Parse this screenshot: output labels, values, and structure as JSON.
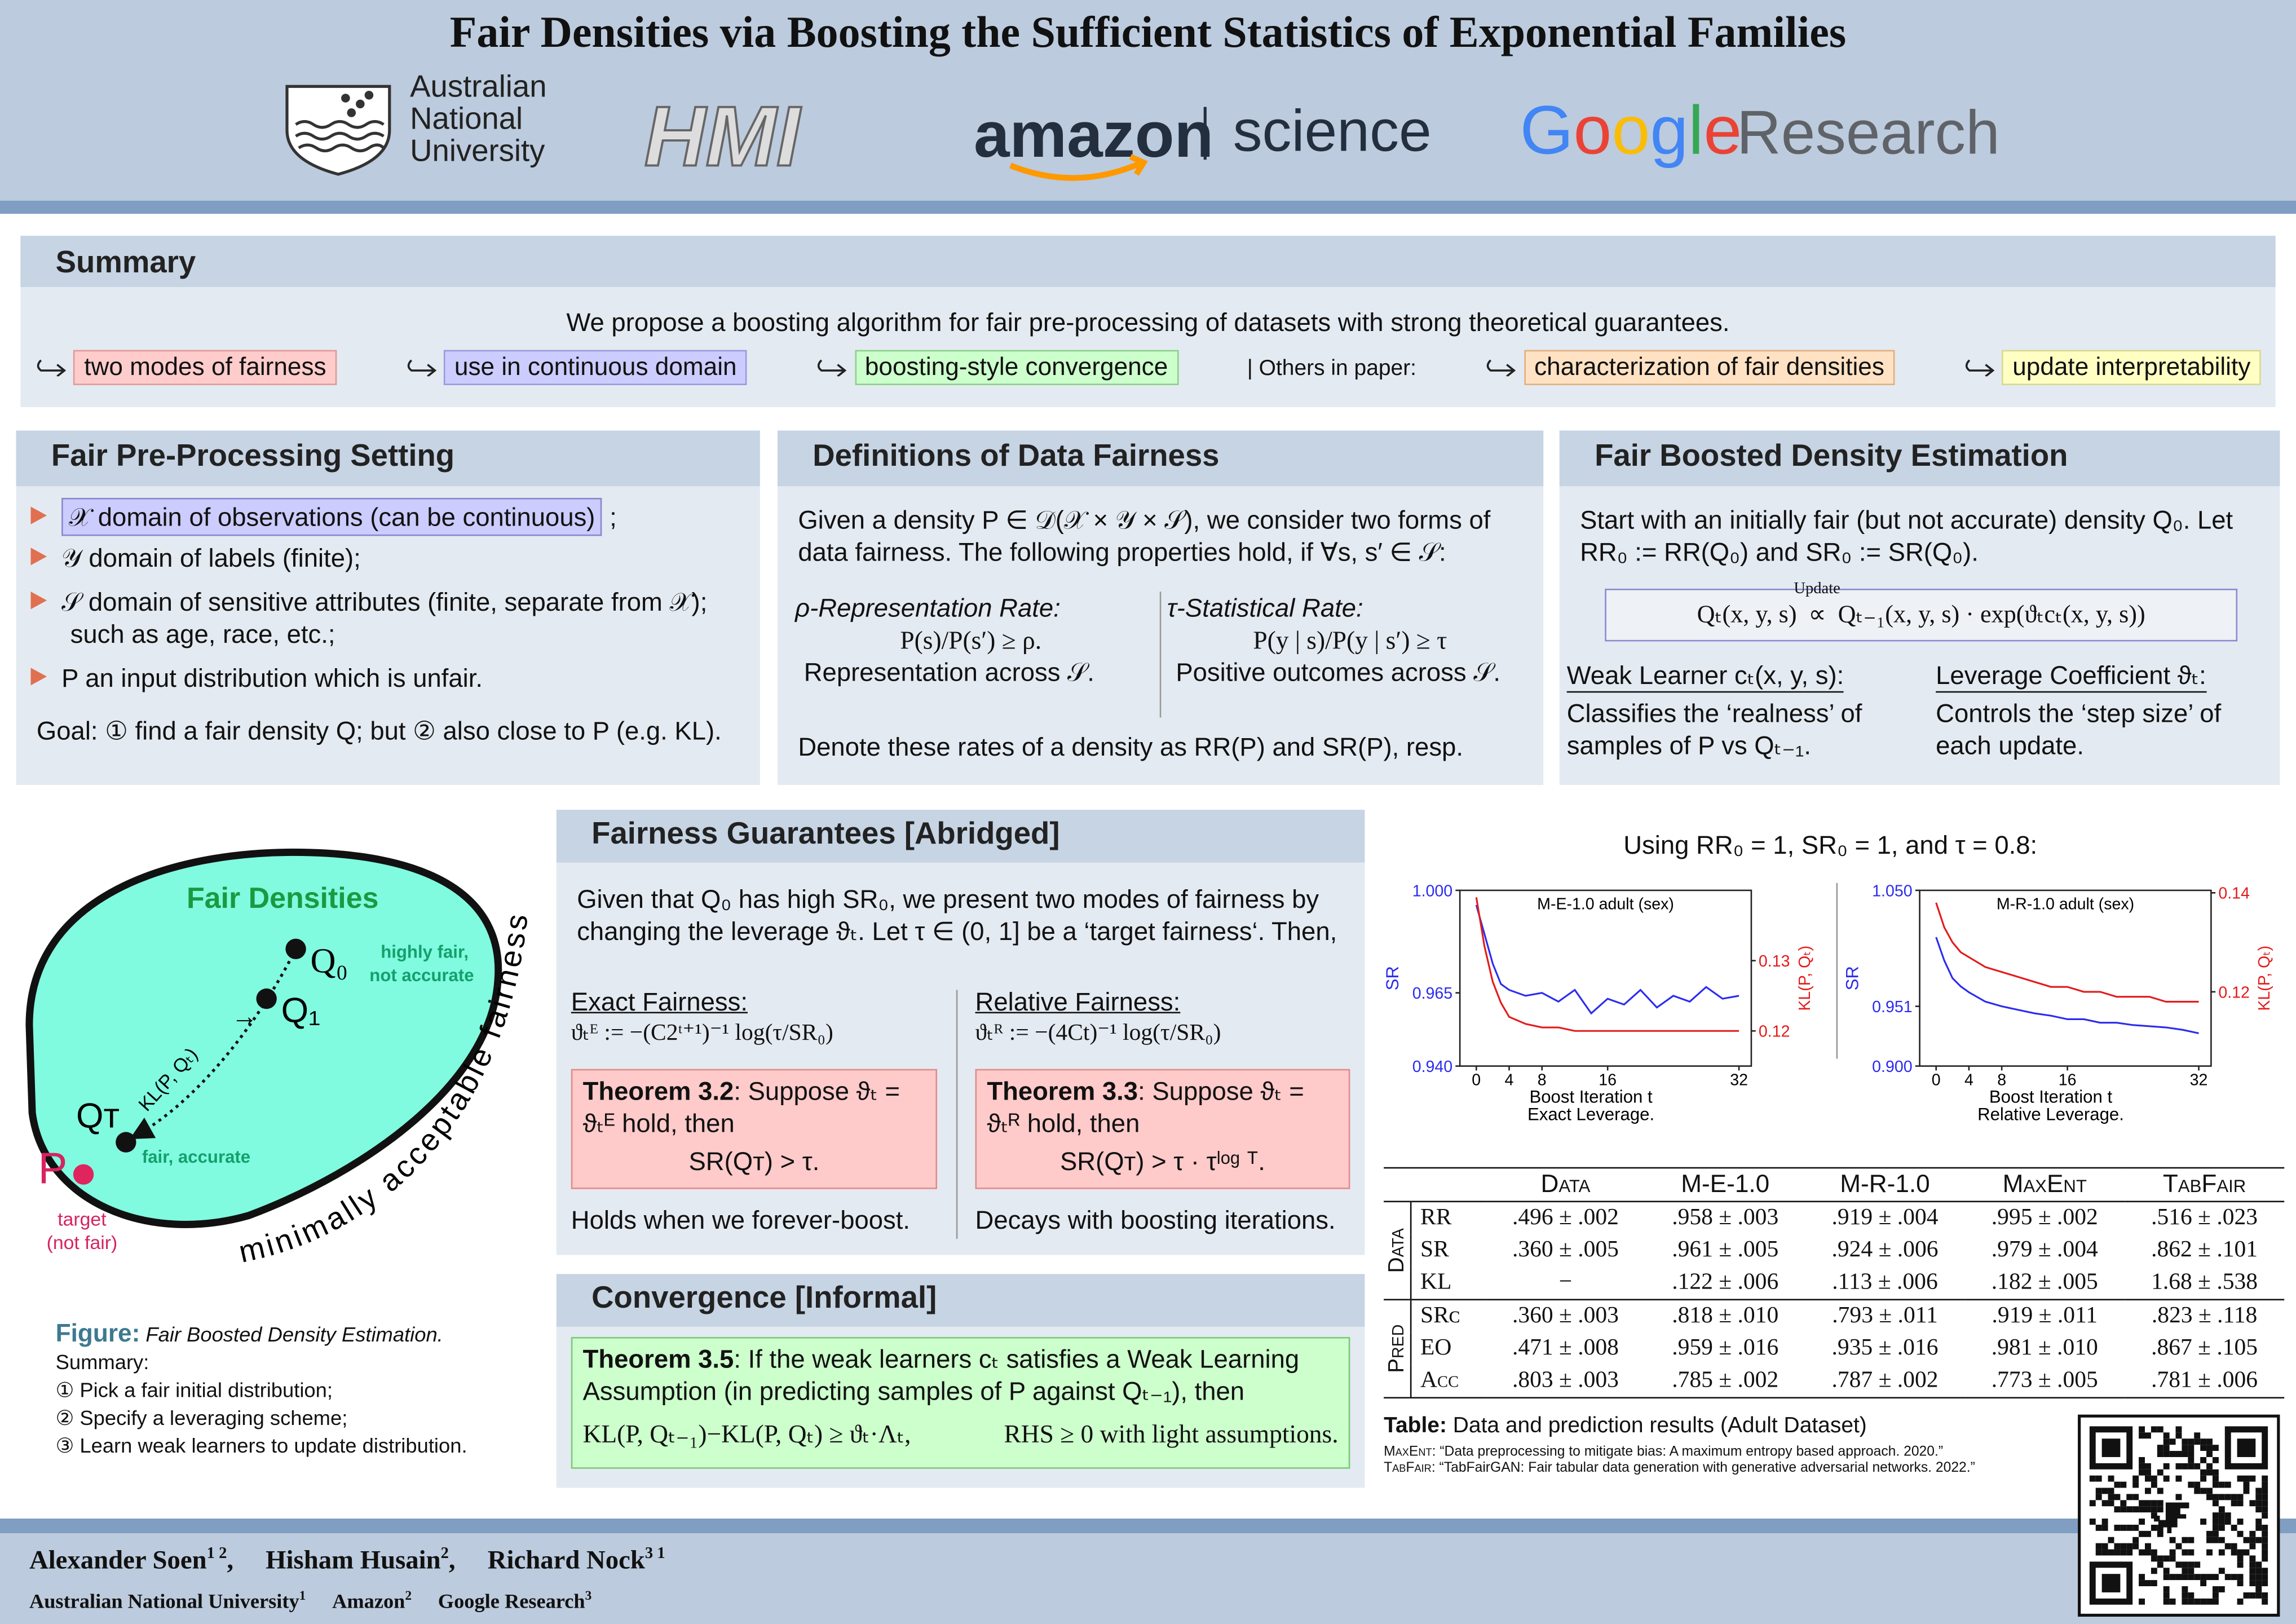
{
  "header": {
    "title": "Fair Densities via Boosting the Sufficient Statistics of Exponential Families",
    "logos": {
      "anu": [
        "Australian",
        "National",
        "University"
      ],
      "hmi": "HMI",
      "amazon": "amazon",
      "science": "science",
      "google": "Google",
      "research": "Research"
    }
  },
  "summary": {
    "heading": "Summary",
    "intro": "We propose a boosting algorithm for fair pre-processing of datasets with strong theoretical guarantees.",
    "highlights": [
      "two modes of fairness",
      "use in continuous domain",
      "boosting-style convergence"
    ],
    "others_label": "| Others in paper:",
    "others": [
      "characterization of fair densities",
      "update interpretability"
    ]
  },
  "setting": {
    "heading": "Fair Pre-Processing Setting",
    "items": [
      "𝒳 domain of observations (can be continuous)",
      "𝒴 domain of labels (finite);",
      "𝒮 domain of sensitive attributes (finite, separate from 𝒳); such as age, race, etc.;",
      "P an input distribution which is unfair."
    ],
    "boxed_suffix": ";",
    "goal": "Goal: ① find a fair density Q; but ② also close to P (e.g. KL)."
  },
  "definitions": {
    "heading": "Definitions of Data Fairness",
    "intro": "Given a density P ∈ 𝒟(𝒳 × 𝒴 × 𝒮), we consider two forms of data fairness. The following properties hold, if ∀s, s′ ∈ 𝒮:",
    "rr": {
      "title": "ρ-Representation Rate:",
      "formula": "P(s)/P(s′) ≥ ρ.",
      "desc": "Representation across 𝒮."
    },
    "sr": {
      "title": "τ-Statistical Rate:",
      "formula": "P(y | s)/P(y | s′) ≥ τ",
      "desc": "Positive outcomes across 𝒮."
    },
    "footer": "Denote these rates of a density as RR(P) and SR(P), resp."
  },
  "boosted": {
    "heading": "Fair Boosted Density Estimation",
    "intro": "Start with an initially fair (but not accurate) density Q₀. Let RR₀ := RR(Q₀) and SR₀ := SR(Q₀).",
    "formula_left": "Qₜ(x, y, s)",
    "formula_over": "Update",
    "formula_op": "∝",
    "formula_right": "Qₜ₋₁(x, y, s) · exp(ϑₜcₜ(x, y, s))",
    "weak": {
      "title": "Weak Learner cₜ(x, y, s):",
      "desc": "Classifies the ‘realness’ of samples of P vs Qₜ₋₁."
    },
    "leverage": {
      "title": "Leverage Coefficient ϑₜ:",
      "desc": "Controls the ‘step size’ of each update."
    }
  },
  "figure": {
    "region": "Fair Densities",
    "q0": "Q₀",
    "q1": "Q₁",
    "qt": "Qᴛ",
    "p": "P",
    "arrow": "→",
    "kl": "KL(P, Qₜ)",
    "q0_note": [
      "highly fair,",
      "not accurate"
    ],
    "qt_note": "fair, accurate",
    "p_note": [
      "target",
      "(not fair)"
    ],
    "boundary": "minimally acceptable fairness",
    "caption_label": "Figure:",
    "caption": "Fair Boosted Density Estimation.",
    "summary": "Summary:",
    "steps": [
      "① Pick a fair initial distribution;",
      "② Specify a leveraging scheme;",
      "③ Learn weak learners to update distribution."
    ]
  },
  "guarantees": {
    "heading": "Fairness Guarantees [Abridged]",
    "intro": "Given that Q₀ has high SR₀, we present two modes of fairness by changing the leverage ϑₜ. Let τ ∈ (0, 1] be a ‘target fairness‘. Then,",
    "exact": {
      "title": "Exact Fairness:",
      "formula": "ϑₜᴱ := −(C2ᵗ⁺¹)⁻¹ log(τ/SR₀)",
      "theorem": "Theorem 3.2",
      "theorem_text": ": Suppose ϑₜ = ϑₜᴱ hold, then",
      "theorem_formula": "SR(Qᴛ) > τ.",
      "note": "Holds when we forever-boost."
    },
    "relative": {
      "title": "Relative Fairness:",
      "formula": "ϑₜᴿ := −(4Ct)⁻¹ log(τ/SR₀)",
      "theorem": "Theorem 3.3",
      "theorem_text": ": Suppose ϑₜ = ϑₜᴿ hold, then",
      "theorem_formula": "SR(Qᴛ) > τ · τˡᵒᵍ ᵀ.",
      "note": "Decays with boosting iterations."
    }
  },
  "convergence": {
    "heading": "Convergence [Informal]",
    "theorem": "Theorem 3.5",
    "theorem_text": ": If the weak learners cₜ satisfies a Weak Learning Assumption (in predicting samples of P against Qₜ₋₁), then",
    "formula": "KL(P, Qₜ₋₁)−KL(P, Qₜ) ≥ ϑₜ·Λₜ,",
    "rhs": "RHS ≥ 0 with light assumptions."
  },
  "plots": {
    "caption": "Using RR₀ = 1, SR₀ = 1, and τ = 0.8:"
  },
  "chart_data": [
    {
      "type": "line",
      "title": "M-E-1.0 adult (sex)",
      "x_label": "Boost Iteration t",
      "caption": "Exact Leverage.",
      "y_label": "SR",
      "y2_label": "KL(P, Qₜ)",
      "x": [
        0,
        1,
        2,
        3,
        4,
        6,
        8,
        10,
        12,
        14,
        16,
        18,
        20,
        22,
        24,
        26,
        28,
        30,
        32
      ],
      "series": [
        {
          "color": "#2b2bf0",
          "values": [
            0.995,
            0.985,
            0.975,
            0.968,
            0.966,
            0.964,
            0.965,
            0.962,
            0.966,
            0.958,
            0.963,
            0.961,
            0.966,
            0.96,
            0.964,
            0.962,
            0.967,
            0.963,
            0.964
          ]
        },
        {
          "color": "#e41a1a",
          "axis": "y2",
          "values": [
            0.139,
            0.132,
            0.127,
            0.124,
            0.122,
            0.121,
            0.1205,
            0.1205,
            0.12,
            0.12,
            0.12,
            0.12,
            0.12,
            0.12,
            0.12,
            0.12,
            0.12,
            0.12,
            0.12
          ]
        }
      ],
      "xlim": [
        -2,
        33.5
      ],
      "xticks": [
        0,
        4,
        8,
        16,
        32
      ],
      "ylim": [
        0.94,
        1.0
      ],
      "yticks": [
        {
          "value": 0.94,
          "label": "0.940"
        },
        {
          "value": 0.965,
          "label": "0.965"
        },
        {
          "value": 1.0,
          "label": "1.000"
        }
      ],
      "y2lim": [
        0.115,
        0.14
      ],
      "y2ticks": [
        0.12,
        0.13
      ]
    },
    {
      "type": "line",
      "title": "M-R-1.0 adult (sex)",
      "x_label": "Boost Iteration t",
      "caption": "Relative Leverage.",
      "y_label": "SR",
      "y2_label": "KL(P, Qₜ)",
      "x": [
        0,
        1,
        2,
        3,
        4,
        6,
        8,
        10,
        12,
        14,
        16,
        18,
        20,
        22,
        24,
        26,
        28,
        30,
        32
      ],
      "series": [
        {
          "color": "#2b2bf0",
          "values": [
            1.01,
            0.99,
            0.975,
            0.968,
            0.963,
            0.955,
            0.951,
            0.948,
            0.945,
            0.943,
            0.94,
            0.94,
            0.937,
            0.937,
            0.935,
            0.934,
            0.933,
            0.931,
            0.928
          ]
        },
        {
          "color": "#e41a1a",
          "axis": "y2",
          "values": [
            0.138,
            0.133,
            0.13,
            0.128,
            0.127,
            0.125,
            0.124,
            0.123,
            0.122,
            0.121,
            0.121,
            0.12,
            0.12,
            0.119,
            0.119,
            0.119,
            0.118,
            0.118,
            0.118
          ]
        }
      ],
      "xlim": [
        -2,
        33.5
      ],
      "xticks": [
        0,
        4,
        8,
        16,
        32
      ],
      "ylim": [
        0.9,
        1.05
      ],
      "yticks": [
        {
          "value": 0.9,
          "label": "0.900"
        },
        {
          "value": 0.951,
          "label": "0.951"
        },
        {
          "value": 1.05,
          "label": "1.050"
        }
      ],
      "y2lim": [
        0.105,
        0.1405
      ],
      "y2ticks": [
        0.12,
        0.14
      ]
    }
  ],
  "table": {
    "columns": [
      "Data",
      "M-E-1.0",
      "M-R-1.0",
      "MaxEnt",
      "TabFair"
    ],
    "groups": [
      {
        "label": "Data",
        "rows": [
          [
            "RR",
            ".496 ± .002",
            ".958 ± .003",
            ".919 ± .004",
            ".995 ± .002",
            ".516 ± .023"
          ],
          [
            "SR",
            ".360 ± .005",
            ".961 ± .005",
            ".924 ± .006",
            ".979 ± .004",
            ".862 ± .101"
          ],
          [
            "KL",
            "−",
            ".122 ± .006",
            ".113 ± .006",
            ".182 ± .005",
            "1.68 ± .538"
          ]
        ]
      },
      {
        "label": "Pred",
        "rows": [
          [
            "SRᴄ",
            ".360 ± .003",
            ".818 ± .010",
            ".793 ± .011",
            ".919 ± .011",
            ".823 ± .118"
          ],
          [
            "EO",
            ".471 ± .008",
            ".959 ± .016",
            ".935 ± .016",
            ".981 ± .010",
            ".867 ± .105"
          ],
          [
            "Acc",
            ".803 ± .003",
            ".785 ± .002",
            ".787 ± .002",
            ".773 ± .005",
            ".781 ± .006"
          ]
        ]
      }
    ],
    "caption_label": "Table:",
    "caption": "Data and prediction results (Adult Dataset)",
    "refs": [
      {
        "name": "MaxEnt",
        "text": ": “Data preprocessing to mitigate bias: A maximum entropy based approach. 2020.”"
      },
      {
        "name": "TabFair",
        "text": ": “TabFairGAN: Fair tabular data generation with generative adversarial networks. 2022.”"
      }
    ]
  },
  "footer": {
    "authors": [
      {
        "name": "Alexander Soen",
        "sup": "1 2",
        "punct": ","
      },
      {
        "name": "Hisham Husain",
        "sup": "2",
        "punct": ","
      },
      {
        "name": "Richard Nock",
        "sup": "3 1"
      }
    ],
    "affiliations": [
      {
        "name": "Australian National University",
        "sup": "1"
      },
      {
        "name": "Amazon",
        "sup": "2"
      },
      {
        "name": "Google Research",
        "sup": "3"
      }
    ]
  }
}
